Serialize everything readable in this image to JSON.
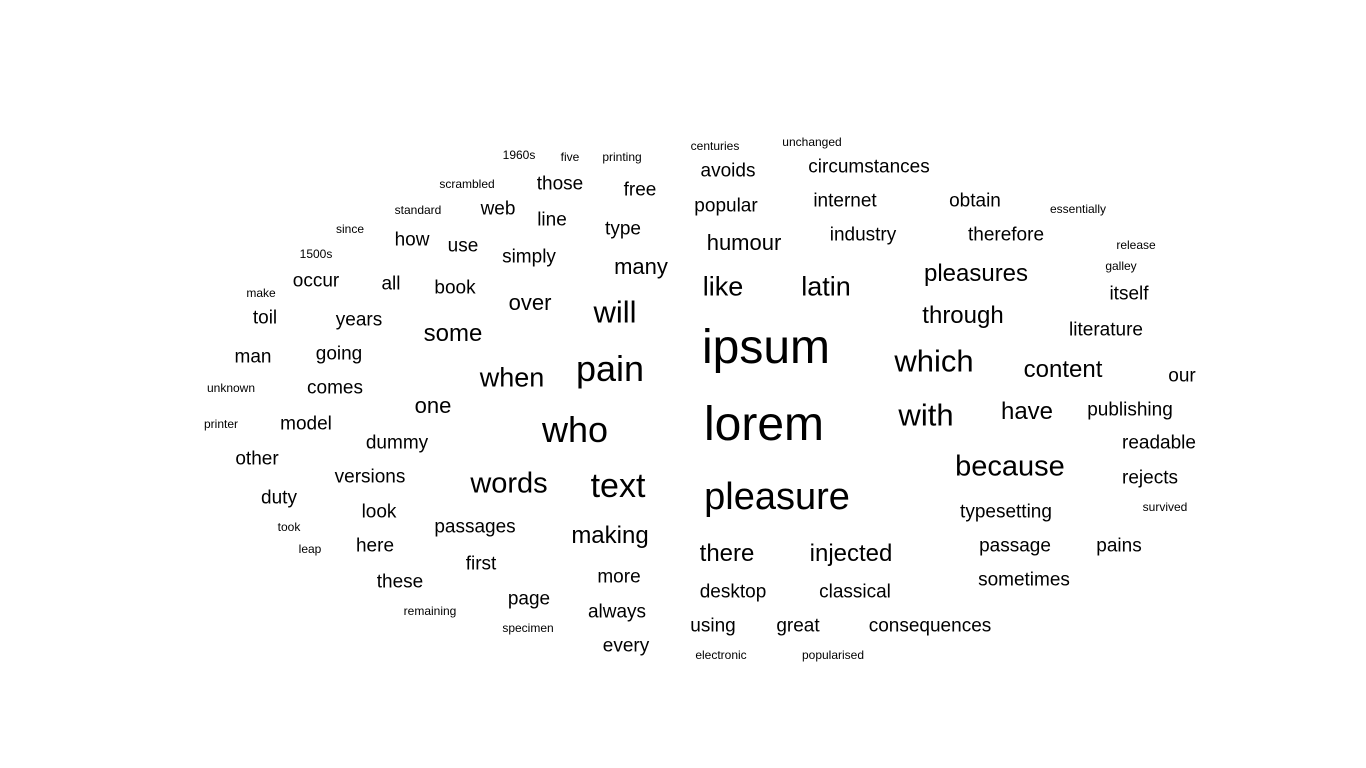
{
  "cloud": {
    "text_color": "#000000",
    "background": "#ffffff",
    "words": [
      "1960s",
      "five",
      "printing",
      "centuries",
      "unchanged",
      "scrambled",
      "those",
      "free",
      "avoids",
      "circumstances",
      "standard",
      "web",
      "line",
      "type",
      "popular",
      "internet",
      "obtain",
      "essentially",
      "since",
      "how",
      "use",
      "simply",
      "humour",
      "industry",
      "therefore",
      "release",
      "1500s",
      "many",
      "galley",
      "make",
      "occur",
      "all",
      "book",
      "like",
      "latin",
      "pleasures",
      "itself",
      "toil",
      "years",
      "over",
      "will",
      "through",
      "some",
      "literature",
      "man",
      "going",
      "pain",
      "ipsum",
      "which",
      "content",
      "unknown",
      "comes",
      "when",
      "our",
      "one",
      "printer",
      "model",
      "with",
      "have",
      "publishing",
      "dummy",
      "who",
      "lorem",
      "readable",
      "other",
      "because",
      "versions",
      "words",
      "text",
      "rejects",
      "duty",
      "look",
      "pleasure",
      "survived",
      "took",
      "passages",
      "making",
      "typesetting",
      "leap",
      "here",
      "there",
      "injected",
      "passage",
      "pains",
      "first",
      "these",
      "more",
      "sometimes",
      "remaining",
      "page",
      "desktop",
      "classical",
      "always",
      "specimen",
      "using",
      "great",
      "consequences",
      "every",
      "electronic",
      "popularised"
    ]
  }
}
